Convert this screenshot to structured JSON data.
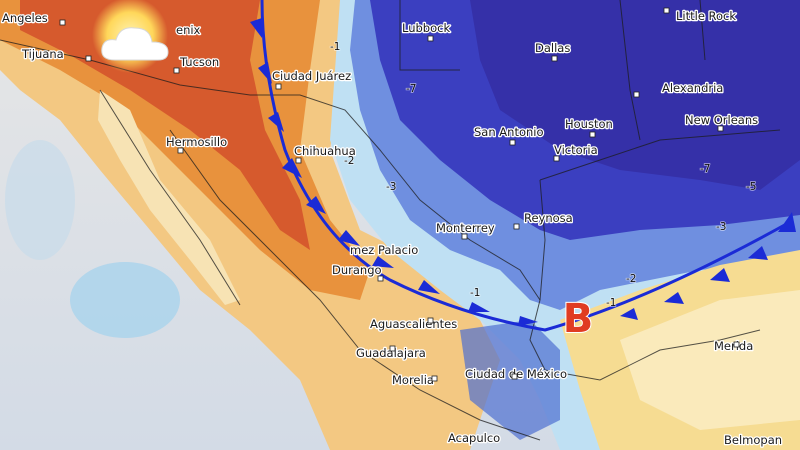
{
  "map": {
    "cities": [
      "Angeles",
      "enix",
      "Tijuana",
      "Tucson",
      "Ciudad Juárez",
      "Hermosillo",
      "Chihuahua",
      "Lubbock",
      "Dallas",
      "Little Rock",
      "Alexandria",
      "San Antonio",
      "Houston",
      "New Orleans",
      "Victoria",
      "Monterrey",
      "Reynosa",
      "mez Palacio",
      "Durango",
      "Aguascalientes",
      "Guadalajara",
      "Morelia",
      "Ciudad de México",
      "Acapulco",
      "Merida",
      "Belmopan"
    ],
    "contour_labels": [
      "-1",
      "-7",
      "-2",
      "-3",
      "-1",
      "-7",
      "-5",
      "-3",
      "-2",
      "-1"
    ],
    "low_label": "B"
  }
}
